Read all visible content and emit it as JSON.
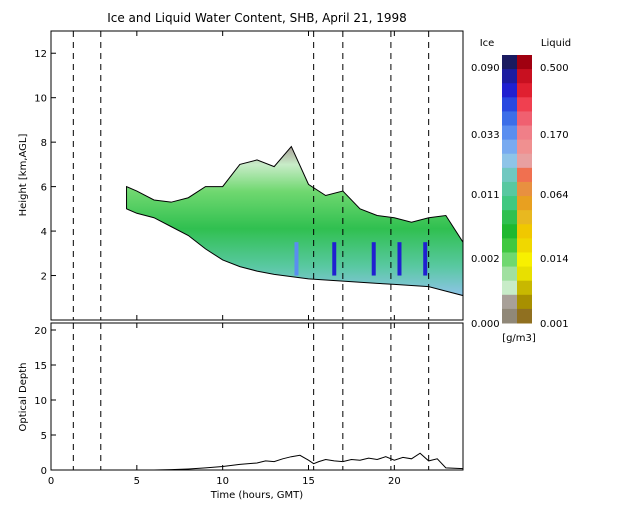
{
  "title": "Ice and Liquid Water Content, SHB, April 21, 1998",
  "top_panel": {
    "ylabel": "Height [km,AGL]",
    "yticks": [
      "2",
      "4",
      "6",
      "8",
      "10",
      "12"
    ]
  },
  "bottom_panel": {
    "ylabel": "Optical Depth",
    "yticks": [
      "0",
      "5",
      "10",
      "15",
      "20"
    ]
  },
  "xlabel": "Time (hours, GMT)",
  "xticks": [
    "0",
    "5",
    "10",
    "15",
    "20"
  ],
  "colorbar": {
    "ice_label": "Ice",
    "liquid_label": "Liquid",
    "units": "[g/m3]",
    "ice_ticks": [
      "0.090",
      "0.033",
      "0.011",
      "0.002",
      "0.000"
    ],
    "liquid_ticks": [
      "0.500",
      "0.170",
      "0.064",
      "0.014",
      "0.001"
    ],
    "ice_colors": [
      "#1a1a60",
      "#1c1ca0",
      "#2020d0",
      "#2848e0",
      "#3c6ee8",
      "#5a8ef0",
      "#78aaf0",
      "#8ec4e8",
      "#70c8c0",
      "#58c8a0",
      "#40c880",
      "#30c050",
      "#20b830",
      "#40c840",
      "#70d870",
      "#a0e0a0",
      "#c8ecc8",
      "#a8a098",
      "#908878"
    ],
    "liquid_colors": [
      "#a00010",
      "#c81020",
      "#e02030",
      "#f04050",
      "#f06070",
      "#f07f88",
      "#f09090",
      "#e8a0a0",
      "#f07050",
      "#e89040",
      "#e8a020",
      "#e8b820",
      "#f0c800",
      "#f0d800",
      "#f8f000",
      "#e8e000",
      "#c8b800",
      "#a89000",
      "#907020"
    ]
  },
  "chart_data": [
    {
      "type": "heatmap",
      "title": "Ice and Liquid Water Content, SHB, April 21, 1998",
      "xlabel": "Time (hours, GMT)",
      "ylabel": "Height [km,AGL]",
      "xlim": [
        0,
        24
      ],
      "ylim": [
        0,
        13
      ],
      "units": "g/m3",
      "dashed_lines_x": [
        1.3,
        2.9,
        15.3,
        17.0,
        19.8,
        22.0
      ],
      "cloud_top": {
        "x": [
          4.4,
          5,
          6,
          7,
          8,
          9,
          10,
          11,
          12,
          13,
          14,
          15,
          16,
          17,
          18,
          19,
          20,
          21,
          22,
          23,
          24
        ],
        "y": [
          6.0,
          5.8,
          5.4,
          5.3,
          5.5,
          6.0,
          6.0,
          7.0,
          7.2,
          6.9,
          7.8,
          6.1,
          5.6,
          5.8,
          5.0,
          4.7,
          4.6,
          4.4,
          4.6,
          4.7,
          3.5
        ]
      },
      "cloud_base": {
        "x": [
          4.4,
          5,
          6,
          7,
          8,
          9,
          10,
          11,
          12,
          13,
          14,
          15,
          16,
          17,
          18,
          19,
          20,
          21,
          22,
          23,
          24
        ],
        "y": [
          5.0,
          4.8,
          4.6,
          4.2,
          3.8,
          3.2,
          2.7,
          2.4,
          2.2,
          2.05,
          1.95,
          1.85,
          1.8,
          1.75,
          1.7,
          1.65,
          1.6,
          1.55,
          1.5,
          1.3,
          1.1
        ]
      },
      "max_ice_columns": {
        "x": [
          14.3,
          16.5,
          18.8,
          20.3,
          21.8
        ],
        "ice_g_m3": [
          0.033,
          0.09,
          0.09,
          0.09,
          0.09
        ]
      }
    },
    {
      "type": "line",
      "xlabel": "Time (hours, GMT)",
      "ylabel": "Optical Depth",
      "xlim": [
        0,
        24
      ],
      "ylim": [
        0,
        21
      ],
      "dashed_lines_x": [
        1.3,
        2.9,
        15.3,
        17.0,
        19.8,
        22.0
      ],
      "x": [
        0,
        6,
        7,
        8,
        9,
        10,
        11,
        12,
        12.5,
        13,
        13.5,
        14,
        14.5,
        15,
        15.3,
        15.6,
        16,
        16.5,
        17,
        17.5,
        18,
        18.5,
        19,
        19.5,
        20,
        20.5,
        21,
        21.5,
        22,
        22.5,
        23,
        24
      ],
      "y": [
        0,
        0,
        0.05,
        0.15,
        0.3,
        0.5,
        0.8,
        1.0,
        1.3,
        1.2,
        1.6,
        1.9,
        2.1,
        1.4,
        0.9,
        1.2,
        1.5,
        1.3,
        1.2,
        1.5,
        1.4,
        1.7,
        1.5,
        1.9,
        1.4,
        1.8,
        1.6,
        2.4,
        1.3,
        1.6,
        0.3,
        0.2
      ]
    }
  ]
}
